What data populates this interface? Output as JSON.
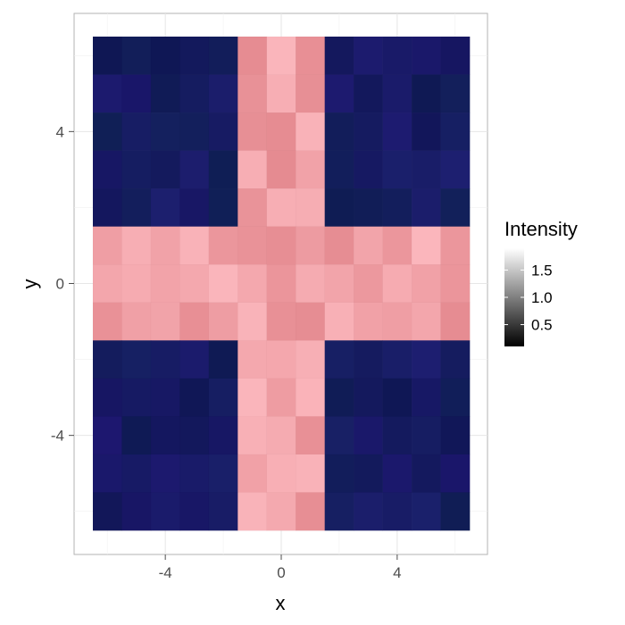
{
  "chart_data": {
    "type": "heatmap",
    "title": "",
    "xlabel": "x",
    "ylabel": "y",
    "xlim": [
      -6.5,
      6.5
    ],
    "ylim": [
      -6.5,
      6.5
    ],
    "x_ticks": [
      -4,
      0,
      4
    ],
    "y_ticks": [
      -4,
      0,
      4
    ],
    "x_tick_labels": [
      "-4",
      "0",
      "4"
    ],
    "y_tick_labels": [
      "-4",
      "0",
      "4"
    ],
    "grid": true,
    "cell_size": 1,
    "x": [
      -6,
      -5,
      -4,
      -3,
      -2,
      -1,
      0,
      1,
      2,
      3,
      4,
      5,
      6
    ],
    "y": [
      6,
      5,
      4,
      3,
      2,
      1,
      0,
      -1,
      -2,
      -3,
      -4,
      -5,
      -6
    ],
    "pattern": "Cross of width 4 centred on the origin (|x| < 2 or |y| < 2) is pink (high intensity); the four corner quadrants are dark navy (low intensity).",
    "colors": {
      "high_region": "#f0a0a6",
      "low_region": "#161b62"
    },
    "legend": {
      "title": "Intensity",
      "position": "right",
      "ticks": [
        0.5,
        1.0,
        1.5
      ],
      "tick_labels": [
        "0.5",
        "1.0",
        "1.5"
      ],
      "range": [
        0.1,
        1.9
      ],
      "gradient": [
        "#000000",
        "#ffffff"
      ]
    }
  }
}
